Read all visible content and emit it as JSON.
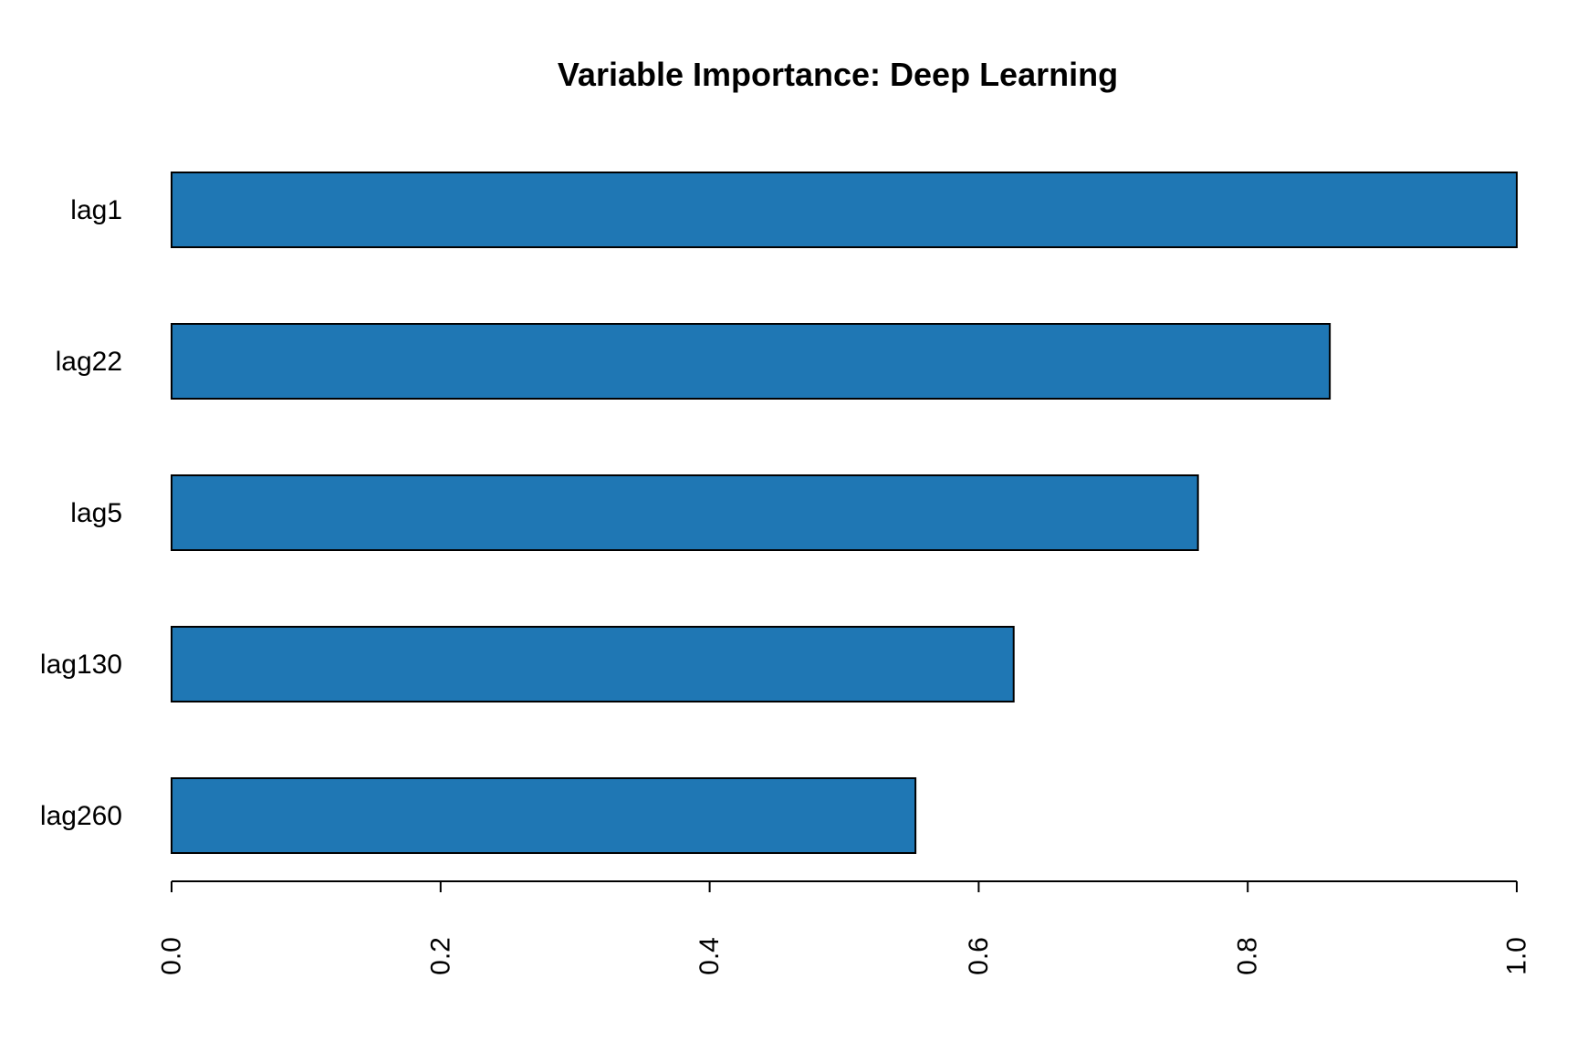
{
  "chart_data": {
    "type": "bar",
    "orientation": "horizontal",
    "title": "Variable Importance: Deep Learning",
    "xlabel": "",
    "ylabel": "",
    "categories": [
      "lag1",
      "lag22",
      "lag5",
      "lag130",
      "lag260"
    ],
    "values": [
      1.0,
      0.861,
      0.763,
      0.626,
      0.553
    ],
    "xlim": [
      0,
      1.0
    ],
    "x_ticks": [
      "0.0",
      "0.2",
      "0.4",
      "0.6",
      "0.8",
      "1.0"
    ],
    "x_tick_values": [
      0.0,
      0.2,
      0.4,
      0.6,
      0.8,
      1.0
    ],
    "tick_label_rotation": "vertical",
    "grid": false,
    "legend": "none",
    "bar_color": "#1f77b4",
    "bar_edge_color": "#000000"
  }
}
